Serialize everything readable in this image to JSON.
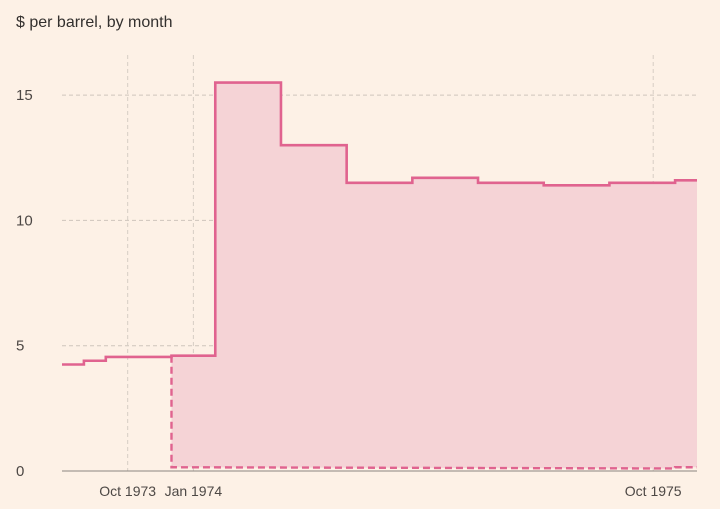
{
  "chart_data": {
    "type": "line",
    "subtitle": "$ per barrel, by month",
    "ylim": [
      0,
      17
    ],
    "y_ticks": [
      0,
      5,
      10,
      15
    ],
    "x_range": [
      "1973-07",
      "1975-12"
    ],
    "x_ticks": [
      {
        "date": "1973-10",
        "label": "Oct 1973"
      },
      {
        "date": "1974-01",
        "label": "Jan 1974"
      },
      {
        "date": "1975-10",
        "label": "Oct 1975"
      }
    ],
    "grid": true,
    "step_interpolation": true,
    "colors": {
      "series_line": "#e0638f",
      "series_fill": "#f5d3d6",
      "background": "#fdf1e6"
    },
    "series": [
      {
        "style": "solid",
        "fill_between": true,
        "points": [
          {
            "x": "1973-07",
            "y": 4.25
          },
          {
            "x": "1973-08",
            "y": 4.4
          },
          {
            "x": "1973-09",
            "y": 4.55
          },
          {
            "x": "1973-12",
            "y": 4.6
          },
          {
            "x": "1974-02",
            "y": 15.5
          },
          {
            "x": "1974-05",
            "y": 13.0
          },
          {
            "x": "1974-08",
            "y": 11.5
          },
          {
            "x": "1974-11",
            "y": 11.7
          },
          {
            "x": "1975-02",
            "y": 11.5
          },
          {
            "x": "1975-05",
            "y": 11.4
          },
          {
            "x": "1975-08",
            "y": 11.5
          },
          {
            "x": "1975-11",
            "y": 11.6
          },
          {
            "x": "1975-12",
            "y": 11.6
          }
        ]
      },
      {
        "style": "dashed",
        "points": [
          {
            "x": "1973-12",
            "y": 4.6
          },
          {
            "x": "1973-12",
            "y": 0.15
          },
          {
            "x": "1975-11",
            "y": 0.1
          },
          {
            "x": "1975-11",
            "y": 0.15
          },
          {
            "x": "1975-12",
            "y": 0.15
          }
        ]
      }
    ]
  }
}
